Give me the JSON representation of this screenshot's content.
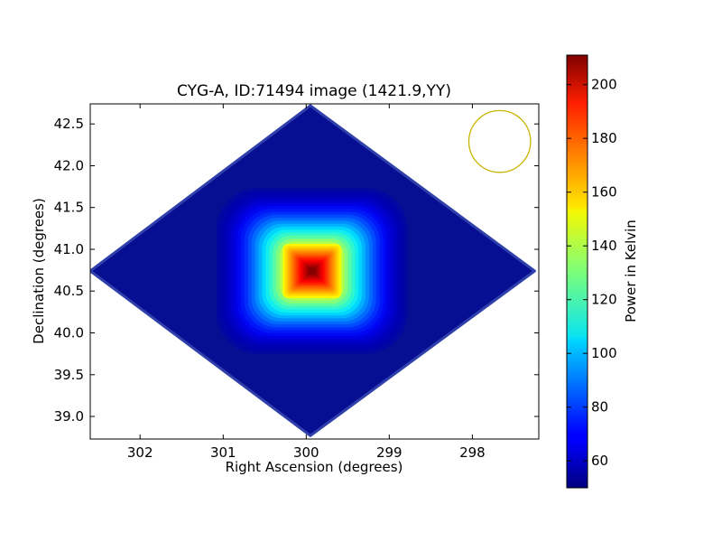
{
  "chart_data": {
    "type": "heatmap",
    "title": "CYG-A, ID:71494 image (1421.9,YY)",
    "xlabel": "Right Ascension (degrees)",
    "ylabel": "Declination (degrees)",
    "xlim": [
      302.6,
      297.2
    ],
    "ylim": [
      38.73,
      42.74
    ],
    "x_ticks": [
      302,
      301,
      300,
      299,
      298
    ],
    "x_tick_labels": [
      "302",
      "301",
      "300",
      "299",
      "298"
    ],
    "y_ticks": [
      39.0,
      39.5,
      40.0,
      40.5,
      41.0,
      41.5,
      42.0,
      42.5
    ],
    "y_tick_labels": [
      "39.0",
      "39.5",
      "40.0",
      "40.5",
      "41.0",
      "41.5",
      "42.0",
      "42.5"
    ],
    "colorbar": {
      "label": "Power in Kelvin",
      "range": [
        50,
        211
      ],
      "ticks": [
        60,
        80,
        100,
        120,
        140,
        160,
        180,
        200
      ],
      "tick_labels": [
        "60",
        "80",
        "100",
        "120",
        "140",
        "160",
        "180",
        "200"
      ],
      "colormap": "jet"
    },
    "image_region": {
      "shape": "diamond",
      "center": [
        299.95,
        40.74
      ],
      "vertices": [
        [
          299.95,
          42.72
        ],
        [
          297.25,
          40.74
        ],
        [
          299.95,
          38.77
        ],
        [
          302.6,
          40.74
        ]
      ]
    },
    "background_value": 57,
    "source": {
      "center": [
        299.93,
        40.74
      ],
      "peak_value": 211,
      "plateau_half_width_ra": 0.36,
      "plateau_half_width_dec": 0.33,
      "edge_value": 150
    },
    "beam": {
      "center": [
        297.67,
        42.29
      ],
      "radius_deg": 0.37,
      "color": "#c8b400"
    }
  }
}
